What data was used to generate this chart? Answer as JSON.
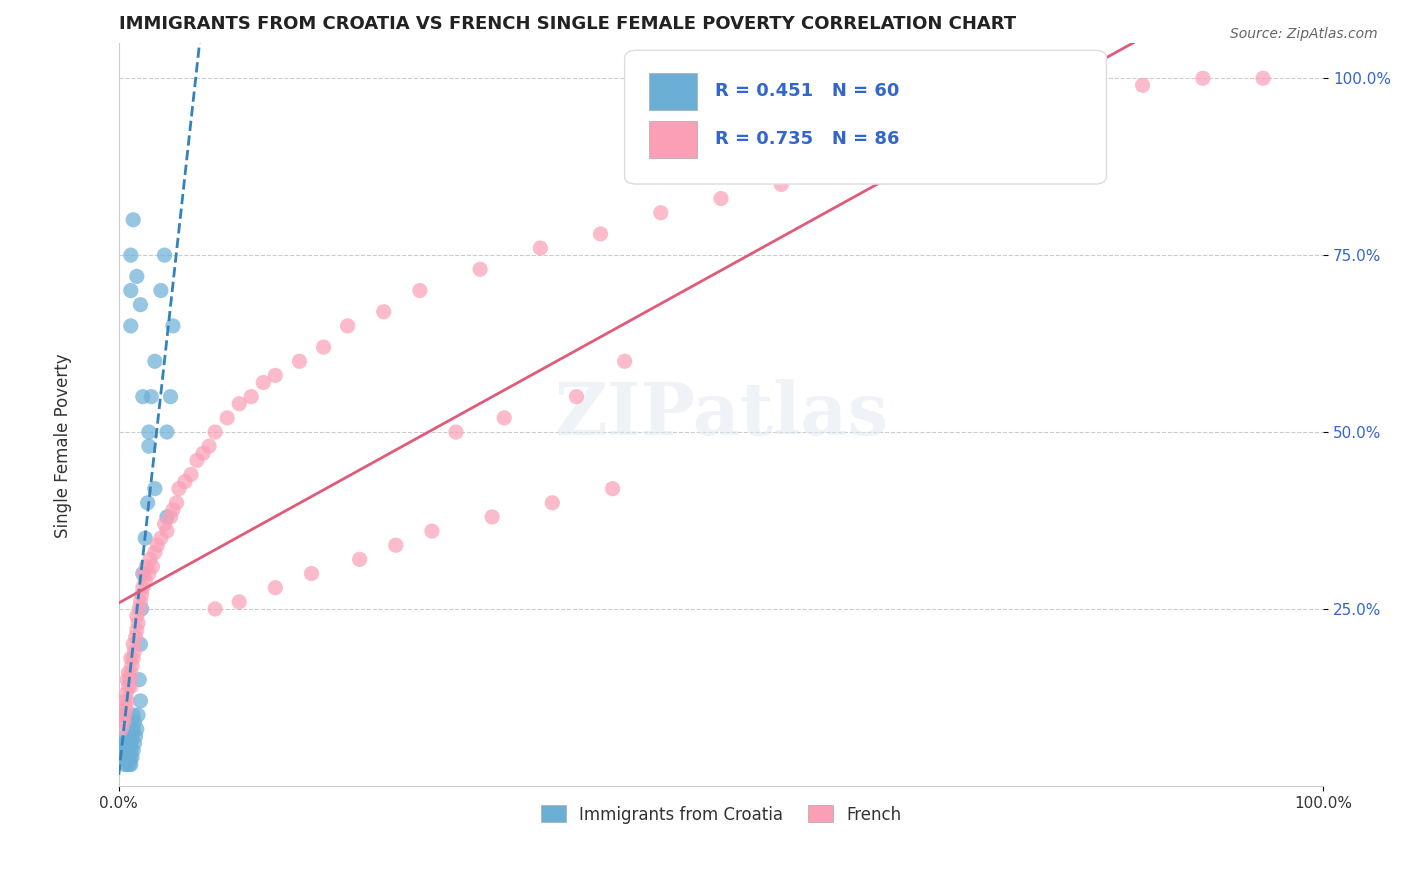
{
  "title": "IMMIGRANTS FROM CROATIA VS FRENCH SINGLE FEMALE POVERTY CORRELATION CHART",
  "source": "Source: ZipAtlas.com",
  "ylabel": "Single Female Poverty",
  "legend_label1": "Immigrants from Croatia",
  "legend_label2": "French",
  "R1": 0.451,
  "N1": 60,
  "R2": 0.735,
  "N2": 86,
  "color_blue": "#6baed6",
  "color_blue_line": "#3182bd",
  "color_pink": "#fa9fb5",
  "color_pink_line": "#e05a7a",
  "color_text_blue": "#3366cc",
  "watermark": "ZIPatlas",
  "blue_x": [
    0.002,
    0.002,
    0.003,
    0.003,
    0.003,
    0.004,
    0.004,
    0.004,
    0.005,
    0.005,
    0.005,
    0.005,
    0.006,
    0.006,
    0.006,
    0.007,
    0.007,
    0.008,
    0.008,
    0.009,
    0.009,
    0.01,
    0.01,
    0.01,
    0.01,
    0.011,
    0.011,
    0.012,
    0.012,
    0.012,
    0.013,
    0.013,
    0.014,
    0.015,
    0.016,
    0.017,
    0.018,
    0.018,
    0.019,
    0.02,
    0.022,
    0.024,
    0.025,
    0.027,
    0.03,
    0.035,
    0.038,
    0.04,
    0.043,
    0.045,
    0.01,
    0.01,
    0.01,
    0.012,
    0.015,
    0.018,
    0.02,
    0.025,
    0.03,
    0.04
  ],
  "blue_y": [
    0.05,
    0.06,
    0.04,
    0.05,
    0.1,
    0.04,
    0.05,
    0.06,
    0.03,
    0.04,
    0.05,
    0.06,
    0.04,
    0.05,
    0.07,
    0.03,
    0.04,
    0.04,
    0.05,
    0.03,
    0.06,
    0.03,
    0.04,
    0.05,
    0.06,
    0.04,
    0.07,
    0.05,
    0.08,
    0.1,
    0.06,
    0.09,
    0.07,
    0.08,
    0.1,
    0.15,
    0.12,
    0.2,
    0.25,
    0.3,
    0.35,
    0.4,
    0.5,
    0.55,
    0.6,
    0.7,
    0.75,
    0.5,
    0.55,
    0.65,
    0.65,
    0.7,
    0.75,
    0.8,
    0.72,
    0.68,
    0.55,
    0.48,
    0.42,
    0.38
  ],
  "pink_x": [
    0.002,
    0.003,
    0.004,
    0.005,
    0.005,
    0.006,
    0.006,
    0.007,
    0.007,
    0.008,
    0.008,
    0.009,
    0.01,
    0.01,
    0.01,
    0.011,
    0.012,
    0.012,
    0.013,
    0.014,
    0.015,
    0.015,
    0.016,
    0.017,
    0.018,
    0.019,
    0.02,
    0.021,
    0.022,
    0.023,
    0.025,
    0.026,
    0.028,
    0.03,
    0.032,
    0.035,
    0.038,
    0.04,
    0.043,
    0.045,
    0.048,
    0.05,
    0.055,
    0.06,
    0.065,
    0.07,
    0.075,
    0.08,
    0.09,
    0.1,
    0.11,
    0.12,
    0.13,
    0.15,
    0.17,
    0.19,
    0.22,
    0.25,
    0.3,
    0.35,
    0.4,
    0.45,
    0.5,
    0.55,
    0.6,
    0.65,
    0.7,
    0.75,
    0.8,
    0.85,
    0.9,
    0.95,
    0.28,
    0.32,
    0.38,
    0.42,
    0.08,
    0.1,
    0.13,
    0.16,
    0.2,
    0.23,
    0.26,
    0.31,
    0.36,
    0.41
  ],
  "pink_y": [
    0.08,
    0.1,
    0.09,
    0.1,
    0.12,
    0.11,
    0.13,
    0.12,
    0.15,
    0.14,
    0.16,
    0.15,
    0.14,
    0.16,
    0.18,
    0.17,
    0.18,
    0.2,
    0.19,
    0.21,
    0.22,
    0.24,
    0.23,
    0.25,
    0.26,
    0.27,
    0.28,
    0.3,
    0.29,
    0.31,
    0.3,
    0.32,
    0.31,
    0.33,
    0.34,
    0.35,
    0.37,
    0.36,
    0.38,
    0.39,
    0.4,
    0.42,
    0.43,
    0.44,
    0.46,
    0.47,
    0.48,
    0.5,
    0.52,
    0.54,
    0.55,
    0.57,
    0.58,
    0.6,
    0.62,
    0.65,
    0.67,
    0.7,
    0.73,
    0.76,
    0.78,
    0.81,
    0.83,
    0.85,
    0.88,
    0.9,
    0.92,
    0.95,
    0.97,
    0.99,
    1.0,
    1.0,
    0.5,
    0.52,
    0.55,
    0.6,
    0.25,
    0.26,
    0.28,
    0.3,
    0.32,
    0.34,
    0.36,
    0.38,
    0.4,
    0.42
  ]
}
